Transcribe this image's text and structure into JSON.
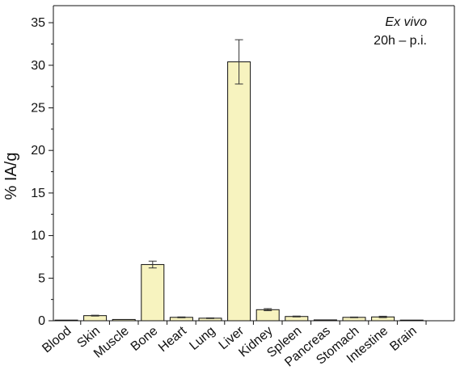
{
  "chart_data": {
    "type": "bar",
    "title": "",
    "xlabel": "",
    "ylabel": "% IA/g",
    "ylim": [
      0,
      37
    ],
    "yticks": [
      0,
      5,
      10,
      15,
      20,
      25,
      30,
      35
    ],
    "grid": false,
    "bar_color": "#f7f3bf",
    "bar_edge_color": "#111111",
    "categories": [
      "Blood",
      "Skin",
      "Muscle",
      "Bone",
      "Heart",
      "Lung",
      "Liver",
      "Kidney",
      "Spleen",
      "Pancreas",
      "Stomach",
      "Intestine",
      "Brain"
    ],
    "values": [
      0.05,
      0.6,
      0.15,
      6.6,
      0.4,
      0.3,
      30.4,
      1.3,
      0.5,
      0.1,
      0.4,
      0.45,
      0.02
    ],
    "errors": [
      0.02,
      0.05,
      0.03,
      0.4,
      0.05,
      0.04,
      2.6,
      0.12,
      0.05,
      0.02,
      0.04,
      0.08,
      0.01
    ],
    "annotations": [
      "Ex vivo",
      "20h – p.i."
    ]
  }
}
